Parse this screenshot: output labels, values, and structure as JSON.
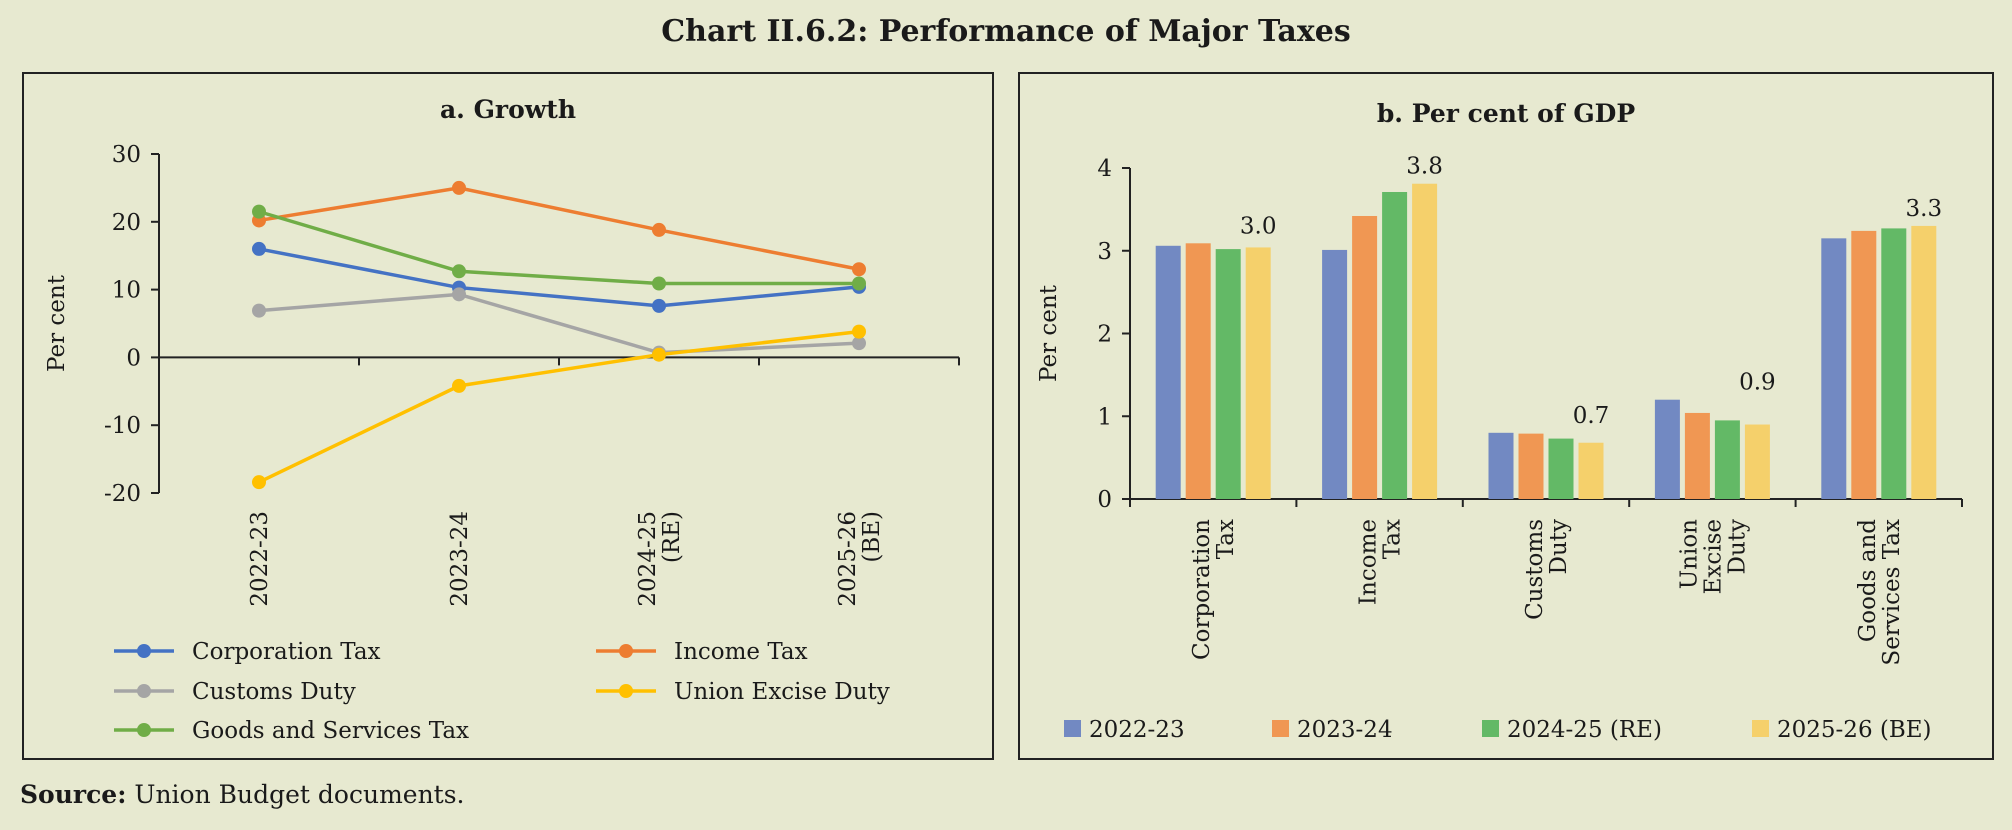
{
  "title": "Chart II.6.2: Performance of Major Taxes",
  "source": {
    "label": "Source:",
    "text": "Union Budget documents."
  },
  "chart_data": [
    {
      "type": "line",
      "title": "a. Growth",
      "ylabel": "Per cent",
      "xlabel": "",
      "ylim": [
        -20,
        30
      ],
      "yticks": [
        "30",
        "20",
        "10",
        "0",
        "-10",
        "-20"
      ],
      "categories": [
        "2022-23",
        "2023-24",
        "2024-25 (RE)",
        "2025-26 (BE)"
      ],
      "category_lines": [
        [
          "2022-23"
        ],
        [
          "2023-24"
        ],
        [
          "2024-25",
          "(RE)"
        ],
        [
          "2025-26",
          "(BE)"
        ]
      ],
      "series": [
        {
          "name": "Corporation Tax",
          "color": "#4472c4",
          "values": [
            16.0,
            10.3,
            7.6,
            10.4
          ]
        },
        {
          "name": "Income Tax",
          "color": "#ed7d31",
          "values": [
            20.2,
            25.0,
            18.8,
            13.0
          ]
        },
        {
          "name": "Customs Duty",
          "color": "#a5a5a5",
          "values": [
            6.9,
            9.3,
            0.7,
            2.1
          ]
        },
        {
          "name": "Union Excise Duty",
          "color": "#ffc000",
          "values": [
            -18.4,
            -4.2,
            0.4,
            3.8
          ]
        },
        {
          "name": "Goods and Services Tax",
          "color": "#70ad47",
          "values": [
            21.5,
            12.7,
            10.9,
            10.9
          ]
        }
      ],
      "legend": "bottom"
    },
    {
      "type": "bar",
      "title": "b. Per cent of GDP",
      "ylabel": "Per cent",
      "xlabel": "",
      "ylim": [
        0,
        4
      ],
      "yticks": [
        "4",
        "3",
        "2",
        "1",
        "0"
      ],
      "categories": [
        "Corporation Tax",
        "Income Tax",
        "Customs Duty",
        "Union Excise Duty",
        "Goods and Services Tax"
      ],
      "category_lines": [
        [
          "Corporation",
          "Tax"
        ],
        [
          "Income",
          "Tax"
        ],
        [
          "Customs",
          "Duty"
        ],
        [
          "Union",
          "Excise",
          "Duty"
        ],
        [
          "Goods and",
          "Services Tax"
        ]
      ],
      "series": [
        {
          "name": "2022-23",
          "color": "#7289c2",
          "values": [
            3.06,
            3.01,
            0.8,
            1.2,
            3.15
          ]
        },
        {
          "name": "2023-24",
          "color": "#f09753",
          "values": [
            3.09,
            3.42,
            0.79,
            1.04,
            3.24
          ]
        },
        {
          "name": "2024-25 (RE)",
          "color": "#63b966",
          "values": [
            3.02,
            3.71,
            0.73,
            0.95,
            3.27
          ]
        },
        {
          "name": "2025-26 (BE)",
          "color": "#f5d06b",
          "values": [
            3.04,
            3.81,
            0.68,
            0.9,
            3.3
          ]
        }
      ],
      "data_labels": [
        "3.0",
        "3.8",
        "0.7",
        "0.9",
        "3.3"
      ],
      "legend": "bottom"
    }
  ]
}
